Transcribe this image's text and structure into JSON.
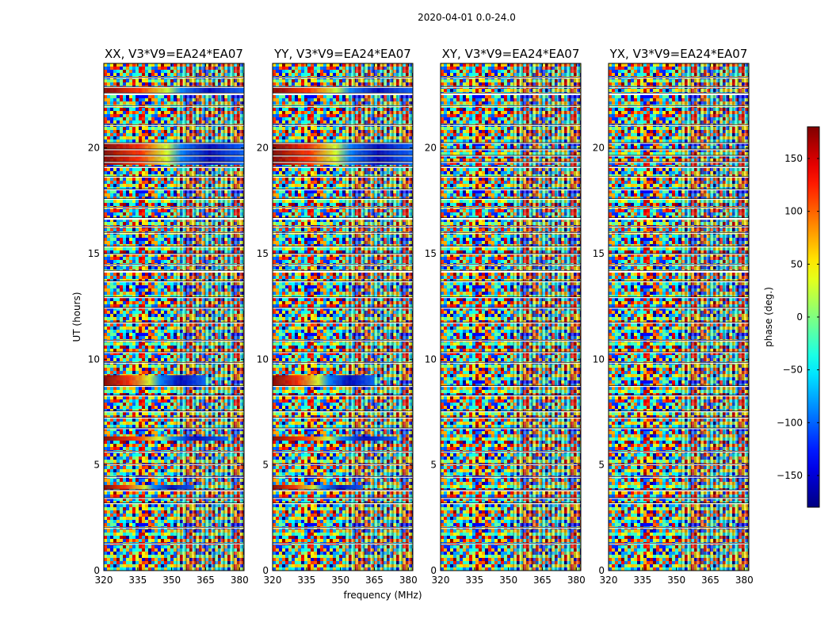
{
  "figure": {
    "suptitle": "2020-04-01 0.0-24.0",
    "xlabel": "frequency (MHz)",
    "ylabel": "UT (hours)",
    "colorbar_label": "phase (deg.)"
  },
  "chart_data": {
    "type": "heatmap",
    "title": "2020-04-01 0.0-24.0",
    "xlabel": "frequency (MHz)",
    "ylabel": "UT (hours)",
    "xlim": [
      320,
      382
    ],
    "ylim": [
      0,
      24
    ],
    "xticks": [
      320,
      335,
      350,
      365,
      380
    ],
    "yticks": [
      0,
      5,
      10,
      15,
      20
    ],
    "colormap": "jet",
    "colorbar": {
      "label": "phase (deg.)",
      "range": [
        -180,
        180
      ],
      "ticks": [
        150,
        100,
        50,
        0,
        -50,
        -100,
        -150
      ],
      "tick_labels": [
        "150",
        "100",
        "50",
        "0",
        "−50",
        "−100",
        "−150"
      ]
    },
    "panels": [
      {
        "title": "XX, V3*V9=EA24*EA07",
        "polarization": "XX",
        "coherent": true
      },
      {
        "title": "YY, V3*V9=EA24*EA07",
        "polarization": "YY",
        "coherent": true
      },
      {
        "title": "XY, V3*V9=EA24*EA07",
        "polarization": "XY",
        "coherent": false
      },
      {
        "title": "YX, V3*V9=EA24*EA07",
        "polarization": "YX",
        "coherent": false
      }
    ],
    "blank_gaps_ut": [
      [
        1.25,
        1.3
      ],
      [
        2.0,
        2.05
      ],
      [
        3.15,
        3.2
      ],
      [
        3.4,
        3.45
      ],
      [
        3.75,
        3.82
      ],
      [
        4.4,
        4.45
      ],
      [
        5.0,
        5.05
      ],
      [
        5.6,
        5.65
      ],
      [
        6.7,
        6.75
      ],
      [
        7.2,
        7.25
      ],
      [
        7.5,
        7.55
      ],
      [
        8.25,
        8.3
      ],
      [
        8.7,
        8.75
      ],
      [
        9.8,
        9.85
      ],
      [
        10.3,
        10.35
      ],
      [
        10.85,
        10.9
      ],
      [
        11.7,
        11.75
      ],
      [
        12.4,
        12.45
      ],
      [
        12.9,
        12.95
      ],
      [
        13.65,
        13.7
      ],
      [
        14.1,
        14.2
      ],
      [
        14.45,
        14.5
      ],
      [
        14.95,
        15.0
      ],
      [
        15.3,
        15.35
      ],
      [
        15.95,
        16.0
      ],
      [
        16.25,
        16.3
      ],
      [
        16.6,
        16.7
      ],
      [
        17.15,
        17.2
      ],
      [
        17.55,
        17.6
      ],
      [
        18.0,
        18.05
      ],
      [
        18.6,
        18.65
      ],
      [
        19.05,
        19.12
      ],
      [
        19.3,
        19.35
      ],
      [
        19.6,
        19.65
      ],
      [
        19.9,
        19.95
      ],
      [
        20.2,
        20.25
      ],
      [
        21.05,
        21.1
      ],
      [
        21.95,
        22.0
      ],
      [
        22.5,
        22.6
      ],
      [
        22.85,
        22.9
      ],
      [
        23.3,
        23.35
      ]
    ],
    "coherent_bands_ut": [
      {
        "ut": [
          22.6,
          22.9
        ],
        "fmax": 382
      },
      {
        "ut": [
          19.2,
          20.2
        ],
        "fmax": 382
      },
      {
        "ut": [
          8.75,
          9.25
        ],
        "fmax": 365
      },
      {
        "ut": [
          6.15,
          6.35
        ],
        "fmax": 375
      },
      {
        "ut": [
          3.85,
          4.05
        ],
        "fmax": 360
      }
    ]
  }
}
